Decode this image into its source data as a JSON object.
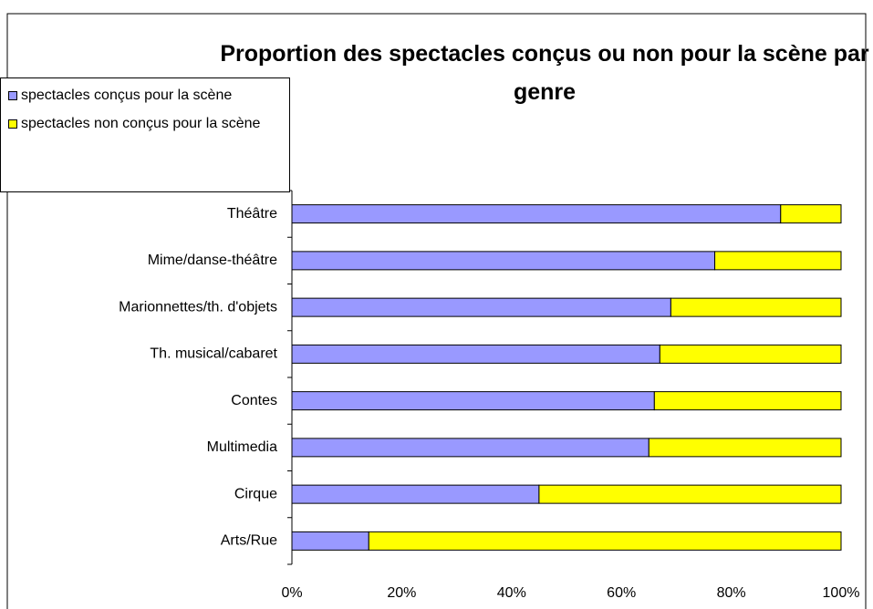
{
  "chart_data": {
    "type": "stacked_barh",
    "title": "Proportion des spectacles conçus ou non pour la scène par genre",
    "categories": [
      "Théâtre",
      "Mime/danse-théâtre",
      "Marionnettes/th. d'objets",
      "Th. musical/cabaret",
      "Contes",
      "Multimedia",
      "Cirque",
      "Arts/Rue"
    ],
    "series": [
      {
        "name": "spectacles conçus pour la scène",
        "color": "#9999ff",
        "values": [
          89,
          77,
          69,
          67,
          66,
          65,
          45,
          14
        ]
      },
      {
        "name": "spectacles non conçus pour la scène",
        "color": "#ffff00",
        "values": [
          11,
          23,
          31,
          33,
          34,
          35,
          55,
          86
        ]
      }
    ],
    "xlim": [
      0,
      100
    ],
    "xticks": [
      {
        "value": 0,
        "label": "0%"
      },
      {
        "value": 20,
        "label": "20%"
      },
      {
        "value": 40,
        "label": "40%"
      },
      {
        "value": 60,
        "label": "60%"
      },
      {
        "value": 80,
        "label": "80%"
      },
      {
        "value": 100,
        "label": "100%"
      }
    ],
    "legend": "upper left"
  }
}
